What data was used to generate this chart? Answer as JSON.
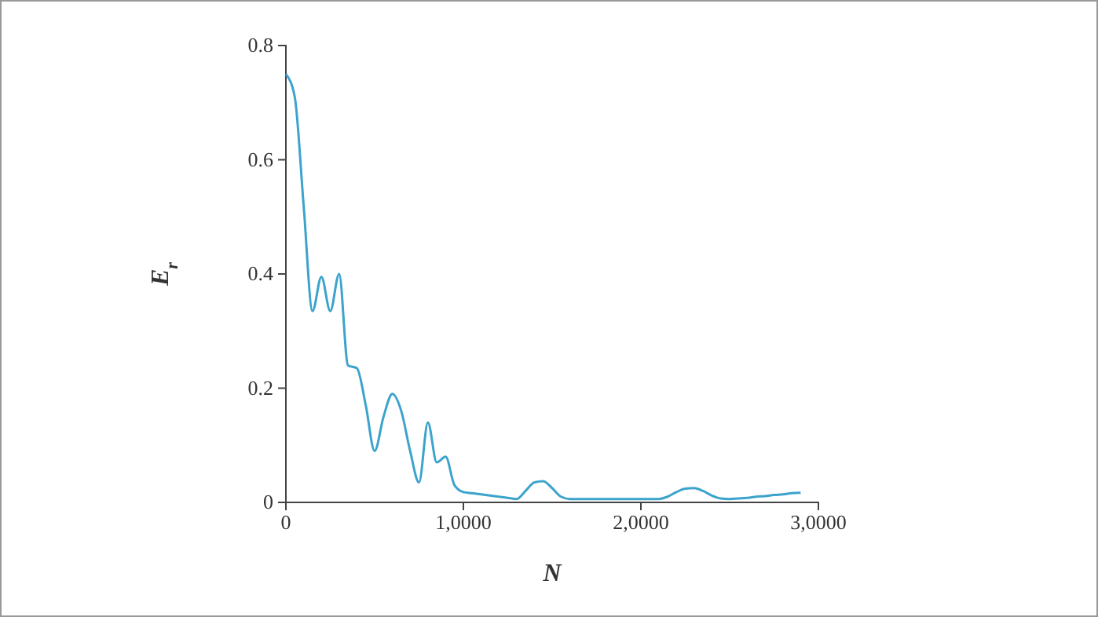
{
  "chart_data": {
    "type": "line",
    "xlabel": "N",
    "ylabel": "E$_{r}$",
    "ylim": [
      0,
      0.8
    ],
    "yticks": [
      0,
      0.2,
      0.4,
      0.6,
      0.8
    ],
    "categories": [
      "0",
      null,
      null,
      null,
      null,
      null,
      null,
      null,
      null,
      null,
      null,
      null,
      null,
      null,
      null,
      null,
      null,
      null,
      null,
      null,
      "1,0000",
      null,
      null,
      null,
      null,
      null,
      null,
      null,
      null,
      null,
      null,
      null,
      null,
      null,
      null,
      null,
      null,
      null,
      null,
      null,
      "2,0000",
      null,
      null,
      null,
      null,
      null,
      null,
      null,
      null,
      null,
      null,
      null,
      null,
      null,
      null,
      null,
      null,
      null,
      null,
      null,
      "3,0000"
    ],
    "series": [
      {
        "color": "#3ba3cc",
        "values": [
          0.75,
          0.71,
          0.52,
          0.335,
          0.395,
          0.335,
          0.4,
          0.24,
          0.235,
          0.17,
          0.09,
          0.15,
          0.19,
          0.16,
          0.09,
          0.035,
          0.14,
          0.07,
          0.08,
          0.03,
          0.018,
          0.016,
          0.014,
          0.012,
          0.01,
          0.008,
          0.006,
          0.02,
          0.035,
          0.037,
          0.025,
          0.01,
          0.006,
          0.006,
          0.006,
          0.006,
          0.006,
          0.006,
          0.006,
          0.006,
          0.006,
          0.006,
          0.006,
          0.01,
          0.018,
          0.024,
          0.025,
          0.02,
          0.012,
          0.007,
          0.006,
          0.007,
          0.008,
          0.01,
          0.011,
          0.013,
          0.014,
          0.016,
          0.017,
          null,
          null
        ]
      }
    ],
    "grid": false,
    "marker": "none",
    "line_style": "solid"
  }
}
